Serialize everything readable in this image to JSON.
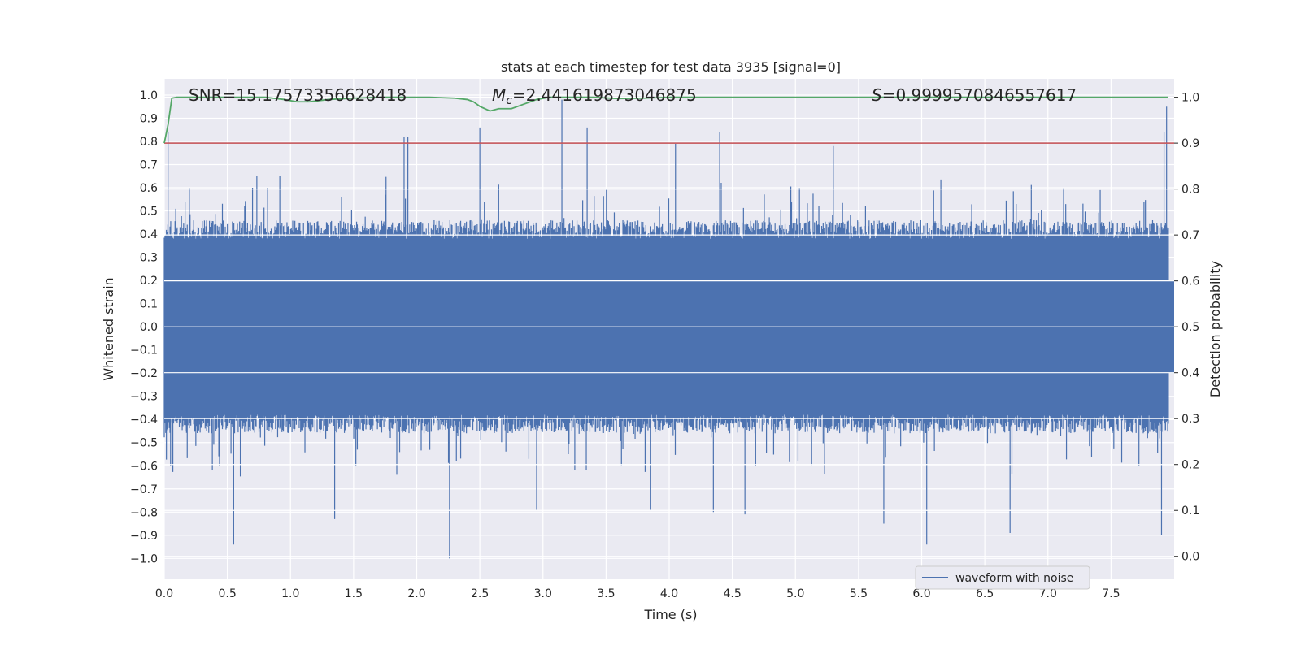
{
  "chart_data": {
    "type": "line",
    "title": "stats at each timestep for test data 3935 [signal=0]",
    "xlabel": "Time (s)",
    "ylabel_left": "Whitened strain",
    "ylabel_right": "Detection probability",
    "xlim": [
      0.0,
      8.0
    ],
    "ylim_left": [
      -1.09,
      1.07
    ],
    "ylim_right": [
      -0.05,
      1.04
    ],
    "xticks": [
      0.0,
      0.5,
      1.0,
      1.5,
      2.0,
      2.5,
      3.0,
      3.5,
      4.0,
      4.5,
      5.0,
      5.5,
      6.0,
      6.5,
      7.0,
      7.5
    ],
    "xtick_labels": [
      "0.0",
      "0.5",
      "1.0",
      "1.5",
      "2.0",
      "2.5",
      "3.0",
      "3.5",
      "4.0",
      "4.5",
      "5.0",
      "5.5",
      "6.0",
      "6.5",
      "7.0",
      "7.5"
    ],
    "yticks_left": [
      1.0,
      0.9,
      0.8,
      0.7,
      0.6,
      0.5,
      0.4,
      0.3,
      0.2,
      0.1,
      0.0,
      -0.1,
      -0.2,
      -0.3,
      -0.4,
      -0.5,
      -0.6,
      -0.7,
      -0.8,
      -0.9,
      -1.0
    ],
    "ytick_labels_left": [
      "1.0",
      "0.9",
      "0.8",
      "0.7",
      "0.6",
      "0.5",
      "0.4",
      "0.3",
      "0.2",
      "0.1",
      "0.0",
      "−0.1",
      "−0.2",
      "−0.3",
      "−0.4",
      "−0.5",
      "−0.6",
      "−0.7",
      "−0.8",
      "−0.9",
      "−1.0"
    ],
    "yticks_right": [
      1.0,
      0.9,
      0.8,
      0.7,
      0.6,
      0.5,
      0.4,
      0.3,
      0.2,
      0.1,
      0.0
    ],
    "ytick_labels_right": [
      "1.0",
      "0.9",
      "0.8",
      "0.7",
      "0.6",
      "0.5",
      "0.4",
      "0.3",
      "0.2",
      "0.1",
      "0.0"
    ],
    "annotations": {
      "snr": "SNR=15.17573356628418",
      "mc_symbol": "M",
      "mc_subscript": "c",
      "mc_value": "=2.441619873046875",
      "s_symbol": "S",
      "s_value": "=0.9999570846557617"
    },
    "legend": {
      "label": "waveform with noise",
      "position": "lower-right"
    },
    "threshold": {
      "axis": "right",
      "value": 0.9,
      "color": "#c44e52"
    },
    "detection_probability": {
      "color": "#55a868",
      "x": [
        0.0,
        0.03,
        0.06,
        0.1,
        0.3,
        0.6,
        0.8,
        0.95,
        1.05,
        1.15,
        1.3,
        1.5,
        1.7,
        1.9,
        2.1,
        2.3,
        2.4,
        2.45,
        2.5,
        2.58,
        2.65,
        2.75,
        2.85,
        2.95,
        3.05,
        3.2,
        3.4,
        3.6,
        3.8,
        4.0,
        4.5,
        5.0,
        6.0,
        7.0,
        7.95
      ],
      "y": [
        0.9,
        0.94,
        0.998,
        1.0,
        1.0,
        1.0,
        1.0,
        0.995,
        0.99,
        0.99,
        0.995,
        0.998,
        1.0,
        1.0,
        1.0,
        0.998,
        0.995,
        0.99,
        0.98,
        0.97,
        0.975,
        0.975,
        0.985,
        0.995,
        1.0,
        1.0,
        1.0,
        0.997,
        0.998,
        1.0,
        1.0,
        1.0,
        1.0,
        1.0,
        1.0
      ]
    },
    "series": [
      {
        "name": "waveform with noise",
        "color": "#4c72b0",
        "samples": 1400,
        "duration_s": 7.96,
        "envelope_typical": 0.38,
        "max": 0.98,
        "min": -1.0,
        "peaks": [
          {
            "x": 0.03,
            "y": 0.84
          },
          {
            "x": 0.55,
            "y": -0.94
          },
          {
            "x": 0.05,
            "y": -0.6
          },
          {
            "x": 1.35,
            "y": -0.83
          },
          {
            "x": 1.9,
            "y": 0.82
          },
          {
            "x": 1.93,
            "y": 0.82
          },
          {
            "x": 2.26,
            "y": -1.0
          },
          {
            "x": 2.5,
            "y": 0.86
          },
          {
            "x": 2.95,
            "y": -0.79
          },
          {
            "x": 3.15,
            "y": 0.98
          },
          {
            "x": 3.35,
            "y": 0.86
          },
          {
            "x": 3.85,
            "y": -0.79
          },
          {
            "x": 4.05,
            "y": 0.79
          },
          {
            "x": 4.35,
            "y": -0.8
          },
          {
            "x": 4.4,
            "y": 0.84
          },
          {
            "x": 4.6,
            "y": -0.81
          },
          {
            "x": 5.3,
            "y": 0.78
          },
          {
            "x": 5.7,
            "y": -0.85
          },
          {
            "x": 6.04,
            "y": -0.94
          },
          {
            "x": 6.7,
            "y": -0.89
          },
          {
            "x": 7.9,
            "y": -0.9
          },
          {
            "x": 7.92,
            "y": 0.84
          },
          {
            "x": 7.94,
            "y": 0.95
          }
        ]
      }
    ]
  }
}
